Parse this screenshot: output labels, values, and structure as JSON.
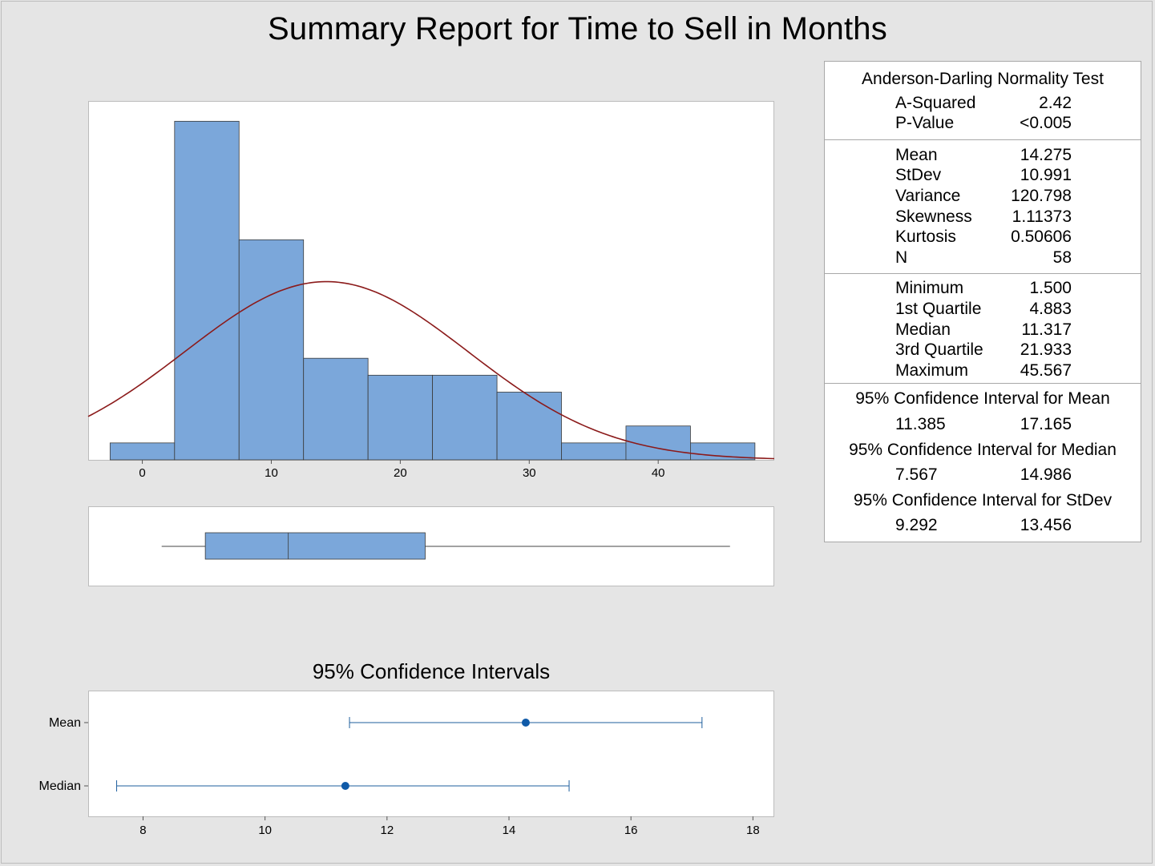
{
  "title": "Summary Report for Time to Sell in Months",
  "colors": {
    "bar_fill": "#7ba7da",
    "bar_stroke": "#3a3a3a",
    "curve": "#8b1a1a",
    "ci_line": "#1f5f9e",
    "ci_dot": "#0f5aa8"
  },
  "chart_data": [
    {
      "type": "histogram",
      "bin_width": 5,
      "bins": [
        {
          "center": 0,
          "count": 1
        },
        {
          "center": 5,
          "count": 20
        },
        {
          "center": 10,
          "count": 13
        },
        {
          "center": 15,
          "count": 6
        },
        {
          "center": 20,
          "count": 5
        },
        {
          "center": 25,
          "count": 5
        },
        {
          "center": 30,
          "count": 4
        },
        {
          "center": 35,
          "count": 1
        },
        {
          "center": 40,
          "count": 2
        },
        {
          "center": 45,
          "count": 1
        }
      ],
      "xlim": [
        -4.2,
        49
      ],
      "xticks": [
        "0",
        "10",
        "20",
        "30",
        "40"
      ],
      "ylim": [
        0,
        21.2
      ],
      "normal_fit": {
        "mean": 14.275,
        "stdev": 10.991,
        "n": 58
      }
    },
    {
      "type": "boxplot",
      "whisker_low": 1.5,
      "q1": 4.883,
      "median": 11.317,
      "q3": 21.933,
      "whisker_high": 45.567
    },
    {
      "type": "interval",
      "title": "95% Confidence Intervals",
      "categories": [
        "Mean",
        "Median"
      ],
      "points": [
        14.275,
        11.317
      ],
      "lower": [
        11.385,
        7.567
      ],
      "upper": [
        17.165,
        14.986
      ],
      "xlim": [
        7.1,
        18.35
      ],
      "xticks": [
        "8",
        "10",
        "12",
        "14",
        "16",
        "18"
      ]
    }
  ],
  "stats": {
    "ad_title": "Anderson-Darling Normality Test",
    "ad_rows": [
      {
        "label": "A-Squared",
        "value": "2.42"
      },
      {
        "label": "P-Value",
        "value": "<0.005"
      }
    ],
    "moment_rows": [
      {
        "label": "Mean",
        "value": "14.275"
      },
      {
        "label": "StDev",
        "value": "10.991"
      },
      {
        "label": "Variance",
        "value": "120.798"
      },
      {
        "label": "Skewness",
        "value": "1.11373"
      },
      {
        "label": "Kurtosis",
        "value": "0.50606"
      },
      {
        "label": "N",
        "value": "58"
      }
    ],
    "quantile_rows": [
      {
        "label": "Minimum",
        "value": "1.500"
      },
      {
        "label": "1st Quartile",
        "value": "4.883"
      },
      {
        "label": "Median",
        "value": "11.317"
      },
      {
        "label": "3rd Quartile",
        "value": "21.933"
      },
      {
        "label": "Maximum",
        "value": "45.567"
      }
    ],
    "ci": [
      {
        "title": "95% Confidence Interval for Mean",
        "lo": "11.385",
        "hi": "17.165"
      },
      {
        "title": "95% Confidence Interval for Median",
        "lo": "7.567",
        "hi": "14.986"
      },
      {
        "title": "95% Confidence Interval for StDev",
        "lo": "9.292",
        "hi": "13.456"
      }
    ]
  }
}
